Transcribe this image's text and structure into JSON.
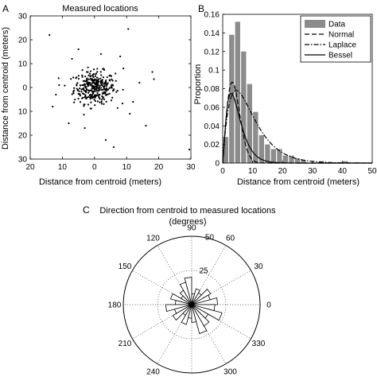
{
  "chart_data": [
    {
      "panel": "A",
      "type": "scatter",
      "title": "Measured locations",
      "xlabel": "Distance from centroid (meters)",
      "ylabel": "Distance from centroid (meters)",
      "xlim": [
        -20,
        30
      ],
      "ylim": [
        -30,
        30
      ],
      "xticks": [
        -20,
        -10,
        0,
        10,
        20,
        30
      ],
      "xtick_labels": [
        "20",
        "10",
        "0",
        "10",
        "20",
        "30"
      ],
      "yticks": [
        30,
        20,
        10,
        0,
        -10,
        -20,
        -30
      ],
      "ytick_labels": [
        "30",
        "20",
        "10",
        "0",
        "10",
        "20",
        "30"
      ],
      "grid": false,
      "outliers": [
        {
          "x": -14,
          "y": 22
        },
        {
          "x": 10.5,
          "y": 24.5
        },
        {
          "x": 18,
          "y": 6.5
        },
        {
          "x": 18.5,
          "y": 3.5
        },
        {
          "x": 16,
          "y": -16
        },
        {
          "x": 29.5,
          "y": -26
        },
        {
          "x": 3.5,
          "y": -22
        },
        {
          "x": 6,
          "y": -25
        },
        {
          "x": -13,
          "y": -8
        },
        {
          "x": -8,
          "y": -15
        },
        {
          "x": -5,
          "y": 16
        },
        {
          "x": -7,
          "y": 12
        },
        {
          "x": 8,
          "y": 13
        },
        {
          "x": 2,
          "y": 14
        },
        {
          "x": -11,
          "y": 1
        },
        {
          "x": -12,
          "y": -3
        },
        {
          "x": 12,
          "y": -6
        },
        {
          "x": 9,
          "y": 8
        },
        {
          "x": 11,
          "y": -11
        },
        {
          "x": -3,
          "y": -17
        },
        {
          "x": 14,
          "y": 2
        }
      ],
      "cluster": {
        "center": [
          0,
          0
        ],
        "sd": 3.2,
        "count": 330
      }
    },
    {
      "panel": "B",
      "type": "bar",
      "xlabel": "Distance from centroid (meters)",
      "ylabel": "Proportion",
      "xlim": [
        0,
        50
      ],
      "ylim": [
        0,
        0.16
      ],
      "xticks": [
        0,
        10,
        20,
        30,
        40,
        50
      ],
      "yticks": [
        0,
        0.02,
        0.04,
        0.06,
        0.08,
        0.1,
        0.12,
        0.14,
        0.16
      ],
      "ytick_labels": [
        "0",
        "0.02",
        "0.04",
        "0.06",
        "0.08",
        "0.1",
        "0.12",
        "0.14",
        "0.16"
      ],
      "bin_width": 2,
      "bin_starts": [
        0,
        2,
        4,
        6,
        8,
        10,
        12,
        14,
        16,
        18,
        20,
        22,
        24,
        26,
        28,
        30,
        32,
        34,
        36,
        38,
        40
      ],
      "values": [
        0.028,
        0.138,
        0.152,
        0.12,
        0.085,
        0.055,
        0.03,
        0.02,
        0.015,
        0.015,
        0.008,
        0.008,
        0.005,
        0.003,
        0.0,
        0.0,
        0.002,
        0.0,
        0.0,
        0.0,
        0.002
      ],
      "series": [
        {
          "name": "Data",
          "style": "bar"
        },
        {
          "name": "Normal",
          "style": "dashed",
          "peak": 3.2,
          "peak_value": 0.087
        },
        {
          "name": "Laplace",
          "style": "dashdot",
          "peak": 4.5,
          "peak_value": 0.078
        },
        {
          "name": "Bessel",
          "style": "solid",
          "peak": 2.8,
          "peak_value": 0.075
        }
      ],
      "legend": "top-right"
    },
    {
      "panel": "C",
      "type": "polar-histogram",
      "title_line1": "Direction from centroid to measured locations",
      "title_line2": "(degrees)",
      "rticks": [
        25,
        50
      ],
      "rmax": 50,
      "angle_labels": [
        "0",
        "30",
        "60",
        "90",
        "120",
        "150",
        "180",
        "210",
        "240",
        "270",
        "300",
        "330"
      ],
      "bin_width_deg": 15,
      "bin_counts": [
        19,
        14,
        16,
        10,
        12,
        8,
        20,
        17,
        12,
        9,
        16,
        12,
        19,
        13,
        16,
        9,
        15,
        10,
        13,
        22,
        18,
        14,
        23,
        17
      ],
      "grid": true
    }
  ],
  "panel_labels": [
    "A",
    "B",
    "C"
  ]
}
